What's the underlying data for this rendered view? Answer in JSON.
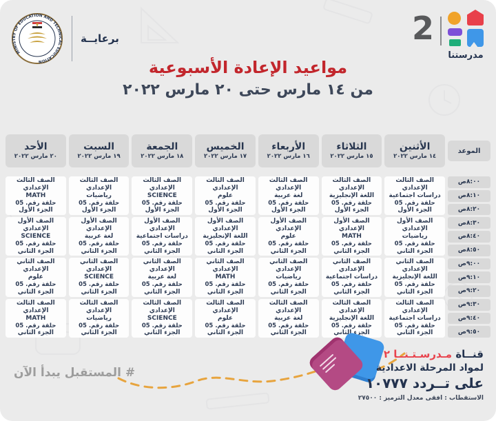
{
  "page": {
    "patronage_label": "برعايــة",
    "title": "مواعيد الإعادة الأسبوعية",
    "subtitle": "من ١٤ مارس حتى ٢٠ مارس ٢٠٢٢"
  },
  "brand": {
    "number": "2",
    "name": "مدرستنا"
  },
  "ministry_seal": {
    "circular_text": "MINISTRY OF EDUCATION AND TECHNICAL EDUCATION"
  },
  "schedule": {
    "time_header": "الموعد",
    "days": [
      {
        "name": "الأثنين",
        "date": "١٤ مارس ٢٠٢٢"
      },
      {
        "name": "الثلاثاء",
        "date": "١٥ مارس ٢٠٢٢"
      },
      {
        "name": "الأربعاء",
        "date": "١٦ مارس ٢٠٢٢"
      },
      {
        "name": "الخميس",
        "date": "١٧ مارس ٢٠٢٢"
      },
      {
        "name": "الجمعة",
        "date": "١٨ مارس ٢٠٢٢"
      },
      {
        "name": "السبت",
        "date": "١٩ مارس ٢٠٢٢"
      },
      {
        "name": "الأحد",
        "date": "٢٠ مارس ٢٠٢٢"
      }
    ],
    "times": [
      "٨:٠٠ص",
      "٨:١٠ص",
      "٨:٢٠ص",
      "٨:٣٠ص",
      "٨:٤٠ص",
      "٨:٥٠ص",
      "٩:٠٠ص",
      "٩:١٠ص",
      "٩:٢٠ص",
      "٩:٣٠ص",
      "٩:٤٠ص",
      "٩:٥٠ص"
    ],
    "rows": [
      {
        "cells": [
          {
            "grade": "الصف الثالث الإعدادي",
            "subject": "دراسات اجتماعية",
            "episode": "حلقة رقم. 05",
            "part": "الجزء الأول"
          },
          {
            "grade": "الصف الثالث الإعدادي",
            "subject": "اللغة الإنجليزية",
            "episode": "حلقة رقم. 05",
            "part": "الجزء الأول"
          },
          {
            "grade": "الصف الثالث الإعدادي",
            "subject": "لغة عربية",
            "episode": "حلقة رقم. 05",
            "part": "الجزء الأول"
          },
          {
            "grade": "الصف الثالث الإعدادي",
            "subject": "علوم",
            "episode": "حلقة رقم. 05",
            "part": "الجزء الأول"
          },
          {
            "grade": "الصف الثالث الإعدادي",
            "subject": "SCIENCE",
            "episode": "حلقة رقم. 05",
            "part": "الجزء الأول"
          },
          {
            "grade": "الصف الثالث الإعدادي",
            "subject": "رياضيات",
            "episode": "حلقة رقم. 05",
            "part": "الجزء الأول"
          },
          {
            "grade": "الصف الثالث الإعدادي",
            "subject": "MATH",
            "episode": "حلقة رقم. 05",
            "part": "الجزء الأول"
          }
        ]
      },
      {
        "cells": [
          {
            "grade": "الصف الأول الإعدادي",
            "subject": "رياضيات",
            "episode": "حلقة رقم. 05",
            "part": "الجزء الثاني"
          },
          {
            "grade": "الصف الأول الإعدادي",
            "subject": "MATH",
            "episode": "حلقة رقم. 05",
            "part": "الجزء الثاني"
          },
          {
            "grade": "الصف الأول الإعدادي",
            "subject": "علوم",
            "episode": "حلقة رقم. 05",
            "part": "الجزء الثاني"
          },
          {
            "grade": "الصف الأول الإعدادي",
            "subject": "اللغة الإنجليزية",
            "episode": "حلقة رقم. 05",
            "part": "الجزء الثاني"
          },
          {
            "grade": "الصف الأول الإعدادي",
            "subject": "دراسات اجتماعية",
            "episode": "حلقة رقم. 05",
            "part": "الجزء الثاني"
          },
          {
            "grade": "الصف الأول الإعدادي",
            "subject": "لغة عربية",
            "episode": "حلقة رقم. 05",
            "part": "الجزء الثاني"
          },
          {
            "grade": "الصف الأول الإعدادي",
            "subject": "SCIENCE",
            "episode": "حلقة رقم. 05",
            "part": "الجزء الثاني"
          }
        ]
      },
      {
        "cells": [
          {
            "grade": "الصف الثاني الإعدادي",
            "subject": "اللغة الإنجليزية",
            "episode": "حلقة رقم. 05",
            "part": "الجزء الثاني"
          },
          {
            "grade": "الصف الثاني الإعدادي",
            "subject": "دراسات اجتماعية",
            "episode": "حلقة رقم. 05",
            "part": "الجزء الثاني"
          },
          {
            "grade": "الصف الثاني الإعدادي",
            "subject": "رياضيات",
            "episode": "حلقة رقم. 05",
            "part": "الجزء الثاني"
          },
          {
            "grade": "الصف الثاني الإعدادي",
            "subject": "MATH",
            "episode": "حلقة رقم. 05",
            "part": "الجزء الثاني"
          },
          {
            "grade": "الصف الثاني الإعدادي",
            "subject": "لغة عربية",
            "episode": "حلقة رقم. 05",
            "part": "الجزء الثاني"
          },
          {
            "grade": "الصف الثاني الإعدادي",
            "subject": "SCIENCE",
            "episode": "حلقة رقم. 05",
            "part": "الجزء الثاني"
          },
          {
            "grade": "الصف الثاني الإعدادي",
            "subject": "علوم",
            "episode": "حلقة رقم. 05",
            "part": "الجزء الثاني"
          }
        ]
      },
      {
        "cells": [
          {
            "grade": "الصف الثالث الإعدادي",
            "subject": "دراسات اجتماعية",
            "episode": "حلقة رقم. 05",
            "part": "الجزء الثاني"
          },
          {
            "grade": "الصف الثالث الإعدادي",
            "subject": "اللغة الإنجليزية",
            "episode": "حلقة رقم. 05",
            "part": "الجزء الثاني"
          },
          {
            "grade": "الصف الثالث الإعدادي",
            "subject": "لغة عربية",
            "episode": "حلقة رقم. 05",
            "part": "الجزء الثاني"
          },
          {
            "grade": "الصف الثالث الإعدادي",
            "subject": "علوم",
            "episode": "حلقة رقم. 05",
            "part": "الجزء الثاني"
          },
          {
            "grade": "الصف الثالث الإعدادي",
            "subject": "SCIENCE",
            "episode": "حلقة رقم. 05",
            "part": "الجزء الثاني"
          },
          {
            "grade": "الصف الثالث الإعدادي",
            "subject": "رياضيات",
            "episode": "حلقة رقم. 05",
            "part": "الجزء الثاني"
          },
          {
            "grade": "الصف الثالث الإعدادي",
            "subject": "MATH",
            "episode": "حلقة رقم. 05",
            "part": "الجزء الثاني"
          }
        ]
      }
    ]
  },
  "footer": {
    "hashtag": "# المستقبل يبدأ الآن",
    "channel_line1_prefix": "قنــاة",
    "channel_line1_name": "مـدرسـتـنــا ٢",
    "channel_line2": "لمواد المرحلة الاعدادية",
    "channel_line3": "على تــردد ١٠٧٧٧",
    "channel_line4": "الاستقطاب : افقى معدل الترميز : ٢٧٥٠٠"
  },
  "colors": {
    "background": "#ebebeb",
    "header_cell_bg": "#d9d9d9",
    "body_cell_bg": "#fdfdfd",
    "navy": "#28364f",
    "title_red": "#c2262c",
    "brand_red": "#e8434d",
    "logo_orange": "#f0a32a",
    "logo_red": "#e8404a",
    "logo_purple": "#7d4fd8",
    "logo_green": "#1fae7a",
    "logo_blue": "#3f97e8",
    "hashtag_gray": "#9d9d9d",
    "dash_orange": "#e7a43e",
    "book_pink": "#b44a84"
  }
}
